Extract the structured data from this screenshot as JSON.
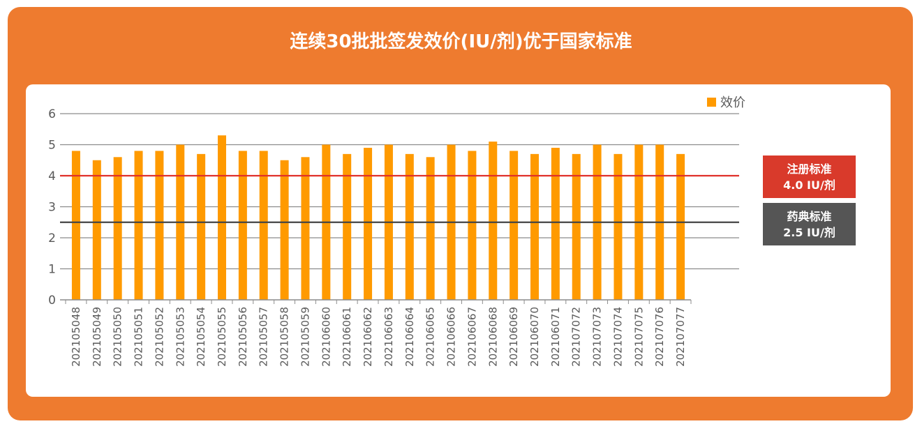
{
  "title": "连续30批批签发效价(IU/剂)优于国家标准",
  "chart_data": {
    "type": "bar",
    "categories": [
      "202105048",
      "202105049",
      "202105050",
      "202105051",
      "202105052",
      "202105053",
      "202105054",
      "202105055",
      "202105056",
      "202105057",
      "202105058",
      "202105059",
      "202106060",
      "202106061",
      "202106062",
      "202106063",
      "202106064",
      "202106065",
      "202106066",
      "202106067",
      "202106068",
      "202106069",
      "202106070",
      "202106071",
      "202107072",
      "202107073",
      "202107074",
      "202107075",
      "202107076",
      "202107077"
    ],
    "series": [
      {
        "name": "效价",
        "color": "#ff9a00",
        "values": [
          4.8,
          4.5,
          4.6,
          4.8,
          4.8,
          5.0,
          4.7,
          5.3,
          4.8,
          4.8,
          4.5,
          4.6,
          5.0,
          4.7,
          4.9,
          5.0,
          4.7,
          4.6,
          5.0,
          4.8,
          5.1,
          4.8,
          4.7,
          4.9,
          4.7,
          5.0,
          4.7,
          5.0,
          5.0,
          4.7
        ]
      }
    ],
    "ylim": [
      0,
      6
    ],
    "yticks": [
      0,
      1,
      2,
      3,
      4,
      5,
      6
    ],
    "grid": true,
    "legend_position": "top-right",
    "reference_lines": [
      {
        "value": 4.0,
        "color": "#e0302a"
      },
      {
        "value": 2.5,
        "color": "#444444"
      }
    ]
  },
  "tags": {
    "registered": {
      "line1": "注册标准",
      "line2": "4.0 IU/剂"
    },
    "pharmacopeia": {
      "line1": "药典标准",
      "line2": "2.5 IU/剂"
    }
  }
}
